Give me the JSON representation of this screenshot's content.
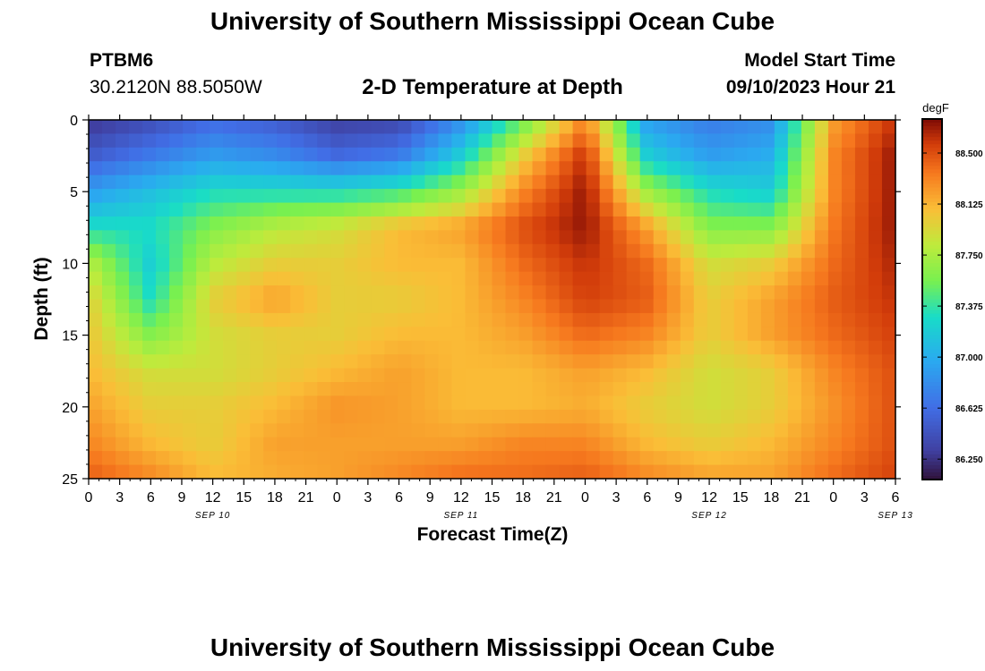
{
  "page": {
    "title": "University of Southern Mississippi Ocean Cube",
    "footer_title": "University of Southern Mississippi Ocean Cube",
    "station_id": "PTBM6",
    "station_coords": "30.2120N  88.5050W",
    "subtitle": "2-D Temperature at Depth",
    "model_start_label": "Model Start Time",
    "model_start_value": "09/10/2023 Hour 21"
  },
  "chart_data": {
    "type": "heatmap",
    "title": "2-D Temperature at Depth",
    "xlabel": "Forecast Time(Z)",
    "ylabel": "Depth (ft)",
    "x_range_hours_from_sep10_00z": [
      0,
      78
    ],
    "x_tick_labels": [
      "0",
      "3",
      "6",
      "9",
      "12",
      "15",
      "18",
      "21",
      "0",
      "3",
      "6",
      "9",
      "12",
      "15",
      "18",
      "21",
      "0",
      "3",
      "6",
      "9",
      "12",
      "15",
      "18",
      "21",
      "0",
      "3",
      "6"
    ],
    "date_labels": [
      {
        "label": "SEP 10",
        "hour": 12
      },
      {
        "label": "SEP 11",
        "hour": 36
      },
      {
        "label": "SEP 12",
        "hour": 60
      },
      {
        "label": "SEP 13",
        "hour": 78
      }
    ],
    "y_range_ft": [
      0,
      25
    ],
    "y_tick_labels": [
      "0",
      "5",
      "10",
      "15",
      "20",
      "25"
    ],
    "colorbar": {
      "units": "degF",
      "min": 86.1,
      "max": 88.75,
      "tick_labels": [
        "86.250",
        "86.625",
        "87.000",
        "87.375",
        "87.750",
        "88.125",
        "88.500"
      ]
    },
    "hours": [
      0,
      6,
      12,
      18,
      24,
      30,
      36,
      42,
      48,
      54,
      60,
      66,
      72,
      78
    ],
    "depths_ft": [
      0,
      2.5,
      5,
      7.5,
      10,
      12.5,
      15,
      17.5,
      20,
      22.5,
      25
    ],
    "temperature_degF": [
      [
        86.25,
        86.4,
        86.6,
        86.5,
        86.3,
        86.35,
        86.8,
        87.5,
        88.3,
        86.9,
        86.7,
        86.8,
        88.2,
        88.6
      ],
      [
        86.5,
        86.7,
        86.9,
        86.8,
        86.6,
        86.7,
        87.2,
        88.0,
        88.6,
        87.2,
        86.9,
        87.0,
        88.3,
        88.7
      ],
      [
        86.9,
        87.1,
        87.3,
        87.3,
        87.3,
        87.4,
        87.7,
        88.3,
        88.7,
        87.7,
        87.3,
        87.2,
        88.3,
        88.7
      ],
      [
        87.3,
        87.3,
        87.6,
        87.8,
        87.9,
        88.1,
        88.2,
        88.5,
        88.7,
        88.2,
        87.6,
        87.6,
        88.35,
        88.7
      ],
      [
        87.8,
        87.2,
        87.8,
        88.0,
        88.0,
        88.1,
        88.1,
        88.4,
        88.6,
        88.4,
        87.9,
        88.0,
        88.4,
        88.65
      ],
      [
        88.0,
        87.3,
        88.0,
        88.2,
        88.0,
        88.0,
        88.1,
        88.3,
        88.55,
        88.45,
        88.0,
        88.2,
        88.45,
        88.6
      ],
      [
        88.05,
        87.6,
        87.9,
        88.0,
        88.0,
        88.1,
        88.1,
        88.2,
        88.4,
        88.3,
        88.0,
        88.2,
        88.4,
        88.55
      ],
      [
        88.1,
        87.9,
        87.9,
        88.0,
        88.1,
        88.2,
        88.1,
        88.1,
        88.2,
        88.1,
        87.9,
        88.0,
        88.3,
        88.5
      ],
      [
        88.2,
        88.0,
        88.0,
        88.1,
        88.25,
        88.2,
        88.1,
        88.1,
        88.15,
        88.0,
        87.9,
        88.0,
        88.25,
        88.5
      ],
      [
        88.3,
        88.1,
        88.0,
        88.2,
        88.2,
        88.2,
        88.2,
        88.3,
        88.3,
        88.1,
        88.0,
        88.1,
        88.3,
        88.5
      ],
      [
        88.45,
        88.3,
        88.1,
        88.15,
        88.2,
        88.3,
        88.4,
        88.4,
        88.45,
        88.3,
        88.2,
        88.2,
        88.4,
        88.55
      ]
    ]
  }
}
